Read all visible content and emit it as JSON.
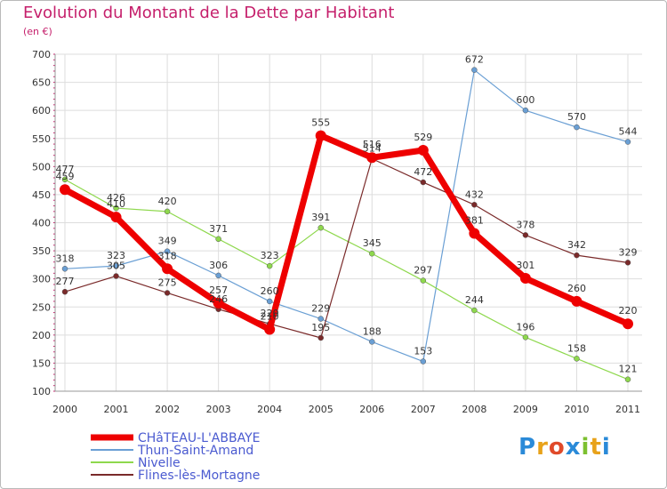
{
  "title": "Evolution du Montant de la Dette par Habitant",
  "unit": "(en €)",
  "logo": "Proxiti",
  "chart_data": {
    "type": "line",
    "title": "Evolution du Montant de la Dette par Habitant",
    "ylabel": "(en €)",
    "xlabel": "",
    "x": [
      "2000",
      "2001",
      "2002",
      "2003",
      "2004",
      "2005",
      "2006",
      "2007",
      "2008",
      "2009",
      "2010",
      "2011"
    ],
    "ylim": [
      100,
      700
    ],
    "yticks": [
      100,
      150,
      200,
      250,
      300,
      350,
      400,
      450,
      500,
      550,
      600,
      650,
      700
    ],
    "grid": true,
    "legend_position": "bottom-left",
    "series": [
      {
        "name": "CHâTEAU-L'ABBAYE",
        "color": "#ee0000",
        "values": [
          459,
          410,
          318,
          257,
          210,
          555,
          516,
          529,
          381,
          301,
          260,
          220
        ]
      },
      {
        "name": "Thun-Saint-Amand",
        "color": "#6a9fd4",
        "values": [
          318,
          323,
          349,
          306,
          260,
          229,
          188,
          153,
          672,
          600,
          570,
          544
        ]
      },
      {
        "name": "Nivelle",
        "color": "#8ed84d",
        "values": [
          477,
          426,
          420,
          371,
          323,
          391,
          345,
          297,
          244,
          196,
          158,
          121
        ]
      },
      {
        "name": "Flines-lès-Mortagne",
        "color": "#7a2a2a",
        "values": [
          277,
          305,
          275,
          246,
          220,
          195,
          514,
          472,
          432,
          378,
          342,
          329
        ]
      }
    ]
  }
}
